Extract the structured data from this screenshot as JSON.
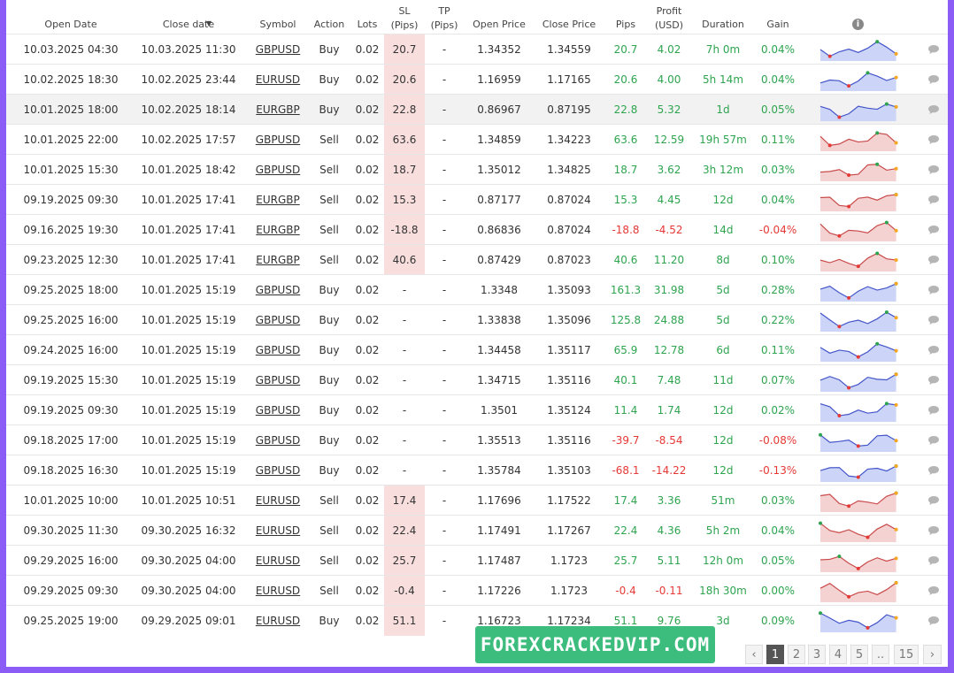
{
  "table": {
    "columns": [
      "Open Date",
      "Close date",
      "Symbol",
      "Action",
      "Lots",
      "SL (Pips)",
      "TP (Pips)",
      "Open Price",
      "Close Price",
      "Pips",
      "Profit (USD)",
      "Duration",
      "Gain"
    ],
    "rows": [
      [
        "10.03.2025 04:30",
        "10.03.2025 11:30",
        "GBPUSD",
        "Buy",
        "0.02",
        "20.7",
        "-",
        "1.34352",
        "1.34559",
        "20.7",
        "4.02",
        "7h 0m",
        "0.04%"
      ],
      [
        "10.02.2025 18:30",
        "10.02.2025 23:44",
        "EURUSD",
        "Buy",
        "0.02",
        "20.6",
        "-",
        "1.16959",
        "1.17165",
        "20.6",
        "4.00",
        "5h 14m",
        "0.04%"
      ],
      [
        "10.01.2025 18:00",
        "10.02.2025 18:14",
        "EURGBP",
        "Buy",
        "0.02",
        "22.8",
        "-",
        "0.86967",
        "0.87195",
        "22.8",
        "5.32",
        "1d",
        "0.05%"
      ],
      [
        "10.01.2025 22:00",
        "10.02.2025 17:57",
        "GBPUSD",
        "Sell",
        "0.02",
        "63.6",
        "-",
        "1.34859",
        "1.34223",
        "63.6",
        "12.59",
        "19h 57m",
        "0.11%"
      ],
      [
        "10.01.2025 15:30",
        "10.01.2025 18:42",
        "GBPUSD",
        "Sell",
        "0.02",
        "18.7",
        "-",
        "1.35012",
        "1.34825",
        "18.7",
        "3.62",
        "3h 12m",
        "0.03%"
      ],
      [
        "09.19.2025 09:30",
        "10.01.2025 17:41",
        "EURGBP",
        "Sell",
        "0.02",
        "15.3",
        "-",
        "0.87177",
        "0.87024",
        "15.3",
        "4.45",
        "12d",
        "0.04%"
      ],
      [
        "09.16.2025 19:30",
        "10.01.2025 17:41",
        "EURGBP",
        "Sell",
        "0.02",
        "-18.8",
        "-",
        "0.86836",
        "0.87024",
        "-18.8",
        "-4.52",
        "14d",
        "-0.04%"
      ],
      [
        "09.23.2025 12:30",
        "10.01.2025 17:41",
        "EURGBP",
        "Sell",
        "0.02",
        "40.6",
        "-",
        "0.87429",
        "0.87023",
        "40.6",
        "11.20",
        "8d",
        "0.10%"
      ],
      [
        "09.25.2025 18:00",
        "10.01.2025 15:19",
        "GBPUSD",
        "Buy",
        "0.02",
        "-",
        "-",
        "1.3348",
        "1.35093",
        "161.3",
        "31.98",
        "5d",
        "0.28%"
      ],
      [
        "09.25.2025 16:00",
        "10.01.2025 15:19",
        "GBPUSD",
        "Buy",
        "0.02",
        "-",
        "-",
        "1.33838",
        "1.35096",
        "125.8",
        "24.88",
        "5d",
        "0.22%"
      ],
      [
        "09.24.2025 16:00",
        "10.01.2025 15:19",
        "GBPUSD",
        "Buy",
        "0.02",
        "-",
        "-",
        "1.34458",
        "1.35117",
        "65.9",
        "12.78",
        "6d",
        "0.11%"
      ],
      [
        "09.19.2025 15:30",
        "10.01.2025 15:19",
        "GBPUSD",
        "Buy",
        "0.02",
        "-",
        "-",
        "1.34715",
        "1.35116",
        "40.1",
        "7.48",
        "11d",
        "0.07%"
      ],
      [
        "09.19.2025 09:30",
        "10.01.2025 15:19",
        "GBPUSD",
        "Buy",
        "0.02",
        "-",
        "-",
        "1.3501",
        "1.35124",
        "11.4",
        "1.74",
        "12d",
        "0.02%"
      ],
      [
        "09.18.2025 17:00",
        "10.01.2025 15:19",
        "GBPUSD",
        "Buy",
        "0.02",
        "-",
        "-",
        "1.35513",
        "1.35116",
        "-39.7",
        "-8.54",
        "12d",
        "-0.08%"
      ],
      [
        "09.18.2025 16:30",
        "10.01.2025 15:19",
        "GBPUSD",
        "Buy",
        "0.02",
        "-",
        "-",
        "1.35784",
        "1.35103",
        "-68.1",
        "-14.22",
        "12d",
        "-0.13%"
      ],
      [
        "10.01.2025 10:00",
        "10.01.2025 10:51",
        "EURUSD",
        "Sell",
        "0.02",
        "17.4",
        "-",
        "1.17696",
        "1.17522",
        "17.4",
        "3.36",
        "51m",
        "0.03%"
      ],
      [
        "09.30.2025 11:30",
        "09.30.2025 16:32",
        "EURUSD",
        "Sell",
        "0.02",
        "22.4",
        "-",
        "1.17491",
        "1.17267",
        "22.4",
        "4.36",
        "5h 2m",
        "0.04%"
      ],
      [
        "09.29.2025 16:00",
        "09.30.2025 04:00",
        "EURUSD",
        "Sell",
        "0.02",
        "25.7",
        "-",
        "1.17487",
        "1.1723",
        "25.7",
        "5.11",
        "12h 0m",
        "0.05%"
      ],
      [
        "09.29.2025 09:30",
        "09.30.2025 04:00",
        "EURUSD",
        "Sell",
        "0.02",
        "-0.4",
        "-",
        "1.17226",
        "1.1723",
        "-0.4",
        "-0.11",
        "18h 30m",
        "0.00%"
      ],
      [
        "09.25.2025 19:00",
        "09.29.2025 09:01",
        "EURUSD",
        "Buy",
        "0.02",
        "51.1",
        "-",
        "1.16723",
        "1.17234",
        "51.1",
        "9.76",
        "3d",
        "0.09%"
      ]
    ]
  },
  "pagination": {
    "pages": [
      "1",
      "2",
      "3",
      "4",
      "5",
      "..",
      "15"
    ],
    "current": "1"
  },
  "watermark": "FOREXCRACKEDVIP.COM"
}
